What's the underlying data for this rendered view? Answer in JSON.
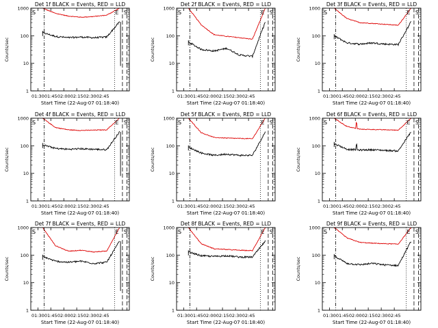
{
  "colors": {
    "events": "#000000",
    "lld": "#dd0000",
    "axis": "#000000"
  },
  "common": {
    "xlabel": "Start Time (22-Aug-07 01:18:40)",
    "ylabel": "Counts/sec",
    "xticks": [
      "01:30",
      "01:45",
      "02:00",
      "02:15",
      "02:30",
      "02:45"
    ],
    "yticks": [
      "1",
      "10",
      "100",
      "1000"
    ],
    "marker_labels": [
      "S",
      "E",
      "S"
    ]
  },
  "chart_data": [
    {
      "type": "line",
      "title": "Det 1f BLACK = Events, RED = LLD",
      "lld": [
        1000,
        650,
        520,
        470,
        500,
        560,
        1000
      ],
      "events": [
        130,
        95,
        85,
        90,
        85,
        90,
        320
      ],
      "dip": 8,
      "spike_min": 0
    },
    {
      "type": "line",
      "title": "Det 2f BLACK = Events, RED = LLD",
      "lld": [
        1000,
        250,
        110,
        95,
        85,
        75,
        1000
      ],
      "events": [
        60,
        32,
        28,
        35,
        20,
        18,
        320
      ],
      "dip": 0,
      "spike_min": 0
    },
    {
      "type": "line",
      "title": "Det 3f BLACK = Events, RED = LLD",
      "lld": [
        1000,
        420,
        300,
        280,
        260,
        240,
        1000
      ],
      "events": [
        100,
        55,
        50,
        55,
        50,
        48,
        320
      ],
      "dip": 0,
      "spike_min": 0
    },
    {
      "type": "line",
      "title": "Det 4f BLACK = Events, RED = LLD",
      "lld": [
        1000,
        460,
        380,
        360,
        370,
        380,
        1000
      ],
      "events": [
        110,
        80,
        75,
        78,
        75,
        72,
        320
      ],
      "dip": 8,
      "spike_min": 0
    },
    {
      "type": "line",
      "title": "Det 5f BLACK = Events, RED = LLD",
      "lld": [
        1000,
        300,
        200,
        190,
        185,
        180,
        1000
      ],
      "events": [
        90,
        55,
        45,
        50,
        45,
        45,
        320
      ],
      "dip": 0,
      "spike_min": 0
    },
    {
      "type": "line",
      "title": "Det 6f BLACK = Events, RED = LLD",
      "lld": [
        1000,
        500,
        400,
        390,
        380,
        370,
        1000
      ],
      "events": [
        120,
        75,
        70,
        72,
        68,
        65,
        320
      ],
      "dip": 0,
      "spike_min": 0.29
    },
    {
      "type": "line",
      "title": "Det 7f BLACK = Events, RED = LLD",
      "lld": [
        1000,
        220,
        140,
        150,
        130,
        140,
        1000
      ],
      "events": [
        90,
        60,
        55,
        60,
        50,
        55,
        320
      ],
      "dip": 5,
      "spike_min": 0
    },
    {
      "type": "line",
      "title": "Det 8f BLACK = Events, RED = LLD",
      "lld": [
        1000,
        260,
        170,
        160,
        150,
        145,
        1000
      ],
      "events": [
        130,
        95,
        90,
        95,
        85,
        85,
        320
      ],
      "dip": 0,
      "spike_min": 0
    },
    {
      "type": "line",
      "title": "Det 9f BLACK = Events, RED = LLD",
      "lld": [
        1000,
        420,
        290,
        270,
        260,
        250,
        1000
      ],
      "events": [
        95,
        50,
        45,
        50,
        44,
        42,
        320
      ],
      "dip": 0,
      "spike_min": 0
    }
  ]
}
